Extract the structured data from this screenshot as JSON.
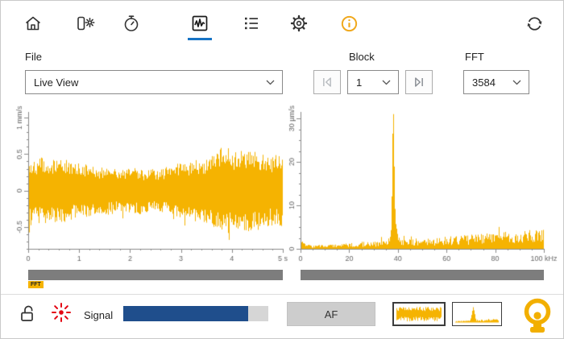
{
  "toolbar": {
    "items": [
      {
        "icon": "home"
      },
      {
        "icon": "laser-source"
      },
      {
        "icon": "timer"
      },
      {
        "icon": "signal-chart",
        "active": true
      },
      {
        "icon": "measurement-list"
      },
      {
        "icon": "settings"
      },
      {
        "icon": "info"
      }
    ],
    "refresh_icon": "refresh",
    "active": "signal-chart"
  },
  "controls": {
    "file": {
      "label": "File",
      "value": "Live View"
    },
    "block": {
      "label": "Block",
      "value": "1"
    },
    "fft": {
      "label": "FFT",
      "value": "3584"
    }
  },
  "chart_data": [
    {
      "type": "line",
      "name": "time-signal",
      "signal": "broadband random vibration noise, amplitude approx ±0.55 mm/s",
      "color": "#F5B301",
      "ylim": [
        -0.8,
        1.08
      ],
      "ytick_values": [
        1,
        0.5,
        0,
        -0.5
      ],
      "ytick_labels": [
        "1 mm/s",
        "0.5",
        "0",
        "-0.5"
      ],
      "yminor": 0.1,
      "xlim": [
        0,
        5
      ],
      "xtick_values": [
        0,
        1,
        2,
        3,
        4,
        5
      ],
      "xtick_labels": [
        "0",
        "1",
        "2",
        "3",
        "4",
        "5 s"
      ],
      "xminor": 0.2
    },
    {
      "type": "line",
      "name": "fft-spectrum",
      "color": "#F5B301",
      "ylim": [
        0,
        31.5
      ],
      "ytick_values": [
        30,
        20,
        10,
        0
      ],
      "ytick_labels": [
        "30 µm/s",
        "20",
        "10",
        "0"
      ],
      "yminor": 2.5,
      "xlim": [
        0,
        100
      ],
      "xtick_values": [
        0,
        20,
        40,
        60,
        80,
        100
      ],
      "xtick_labels": [
        "0",
        "20",
        "40",
        "60",
        "80",
        "100 kHz"
      ],
      "xminor": 5,
      "noise_floor": {
        "start": 0.7,
        "end": 4.0
      },
      "peaks": [
        {
          "freq_khz": 38,
          "amp": 26.5,
          "width": 0.35
        },
        {
          "freq_khz": 38.3,
          "amp": 5,
          "width": 1.1
        }
      ]
    }
  ],
  "scrollbars": {
    "fft_badge": "FFT"
  },
  "bottom": {
    "signal_label": "Signal",
    "signal_level": 0.86,
    "af_button": "AF"
  },
  "colors": {
    "accent_yellow": "#F5B301",
    "accent_blue": "#1673C5",
    "signal_blue": "#1F4E8C",
    "laser_red": "#E30613",
    "scrollbar_gray": "#7D7D7D"
  }
}
